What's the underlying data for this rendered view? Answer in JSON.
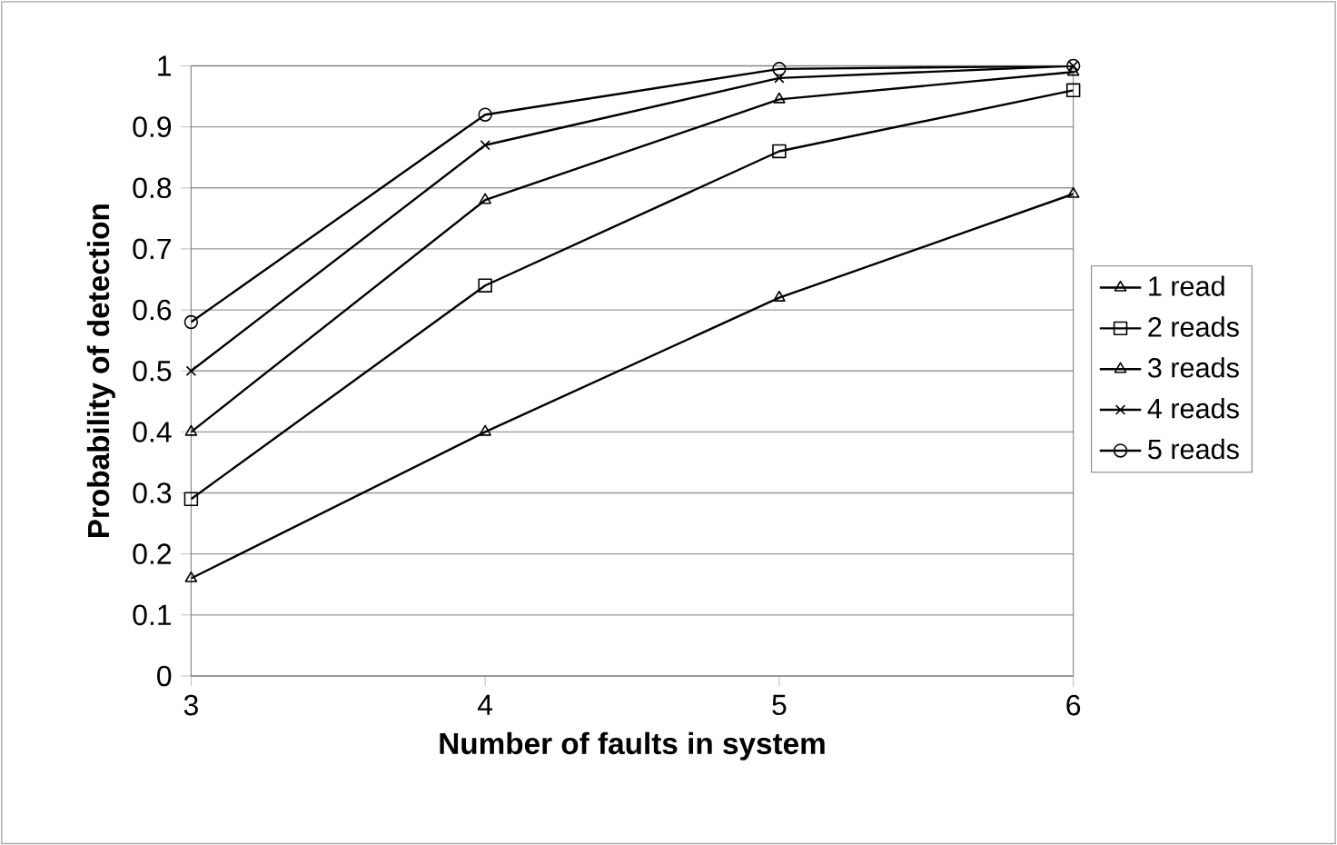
{
  "chart_data": {
    "type": "line",
    "xlabel": "Number of faults in system",
    "ylabel": "Probability of detection",
    "x": [
      3,
      4,
      5,
      6
    ],
    "xlim": [
      3,
      6
    ],
    "xticks": [
      3,
      4,
      5,
      6
    ],
    "ylim": [
      0,
      1
    ],
    "yticks": [
      0,
      0.1,
      0.2,
      0.3,
      0.4,
      0.5,
      0.6,
      0.7,
      0.8,
      0.9,
      1
    ],
    "grid": "y",
    "legend": "right",
    "line_style": "solid",
    "series": [
      {
        "name": "1 read",
        "color": "#000000",
        "marker": "triangle",
        "values": [
          0.16,
          0.4,
          0.62,
          0.79
        ]
      },
      {
        "name": "2 reads",
        "color": "#000000",
        "marker": "square",
        "values": [
          0.29,
          0.64,
          0.86,
          0.96
        ]
      },
      {
        "name": "3 reads",
        "color": "#000000",
        "marker": "triangle",
        "values": [
          0.4,
          0.78,
          0.945,
          0.99
        ]
      },
      {
        "name": "4 reads",
        "color": "#000000",
        "marker": "cross",
        "values": [
          0.5,
          0.87,
          0.98,
          1.0
        ]
      },
      {
        "name": "5 reads",
        "color": "#000000",
        "marker": "circle",
        "values": [
          0.58,
          0.92,
          0.995,
          1.0
        ]
      }
    ]
  }
}
